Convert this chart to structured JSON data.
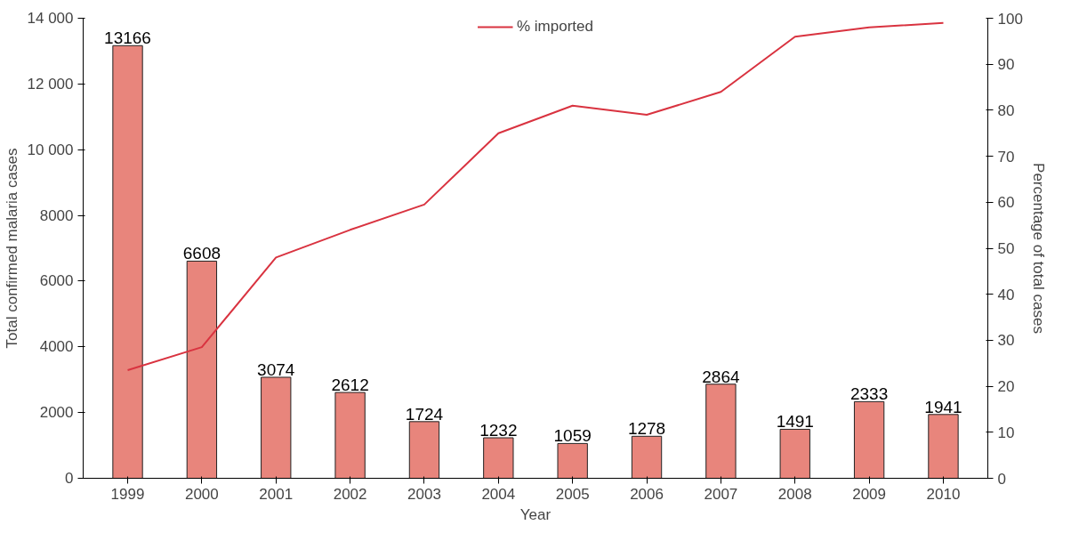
{
  "chart_data": {
    "type": "bar",
    "xlabel": "Year",
    "ylabel": "Total confirmed malaria cases",
    "y2label": "Percentage of total cases",
    "categories": [
      "1999",
      "2000",
      "2001",
      "2002",
      "2003",
      "2004",
      "2005",
      "2006",
      "2007",
      "2008",
      "2009",
      "2010"
    ],
    "series": [
      {
        "color": "#e8857c",
        "values": [
          13166,
          6608,
          3074,
          2612,
          1724,
          1232,
          1059,
          1278,
          2864,
          1491,
          2333,
          1941
        ],
        "value_labels": [
          "13166",
          "6608",
          "3074",
          "2612",
          "1724",
          "1232",
          "1059",
          "1278",
          "2864",
          "1491",
          "2333",
          "1941"
        ]
      },
      {
        "type": "line",
        "name": "% imported",
        "color": "#d93340",
        "axis": "y2",
        "values": [
          23.5,
          28.5,
          48,
          54,
          59.5,
          75,
          81,
          79,
          84,
          96,
          98,
          99
        ]
      }
    ],
    "ylim": [
      0,
      14000
    ],
    "yticks": [
      0,
      2000,
      4000,
      6000,
      8000,
      {
        "value": 10000,
        "label": "10 000"
      },
      {
        "value": 12000,
        "label": "12 000"
      },
      {
        "value": 14000,
        "label": "14 000"
      }
    ],
    "y2lim": [
      0,
      100
    ],
    "y2ticks": [
      0,
      10,
      20,
      30,
      40,
      50,
      60,
      70,
      80,
      90,
      100
    ],
    "grid": false,
    "legend": "top",
    "marker": "none",
    "line_style": "solid"
  }
}
